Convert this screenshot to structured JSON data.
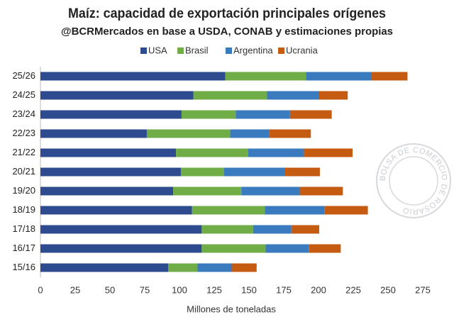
{
  "chart_data": {
    "type": "stacked-barh",
    "title": "Maíz: capacidad de exportación principales orígenes",
    "subtitle": "@BCRMercados en base a USDA, CONAB y estimaciones propias",
    "x_label": "Millones de toneladas",
    "watermark": "BOLSA DE COMERCIO DE ROSARIO",
    "categories": [
      "25/26",
      "24/25",
      "23/24",
      "22/23",
      "21/22",
      "20/21",
      "19/20",
      "18/19",
      "17/18",
      "16/17",
      "15/16"
    ],
    "series": [
      {
        "name": "USA",
        "color": "#2f4b8f",
        "values": [
          133,
          110,
          101.5,
          76.5,
          97.5,
          101,
          95.5,
          109,
          116,
          116,
          92
        ]
      },
      {
        "name": "Brasil",
        "color": "#70ad47",
        "values": [
          58,
          53,
          39,
          60,
          52,
          31,
          49,
          52.5,
          37,
          46,
          21
        ]
      },
      {
        "name": "Argentina",
        "color": "#3a7abf",
        "values": [
          47,
          37,
          39,
          28,
          40,
          44,
          42,
          43,
          27.5,
          31,
          24.5
        ]
      },
      {
        "name": "Ucrania",
        "color": "#c55a11",
        "values": [
          26,
          21,
          30,
          30,
          35,
          25,
          31,
          31,
          20,
          23,
          18
        ]
      }
    ],
    "xlim": [
      0,
      275
    ],
    "xticks": [
      0,
      25,
      50,
      75,
      100,
      125,
      150,
      175,
      200,
      225,
      250,
      275
    ],
    "grid": false,
    "legend": "top"
  }
}
